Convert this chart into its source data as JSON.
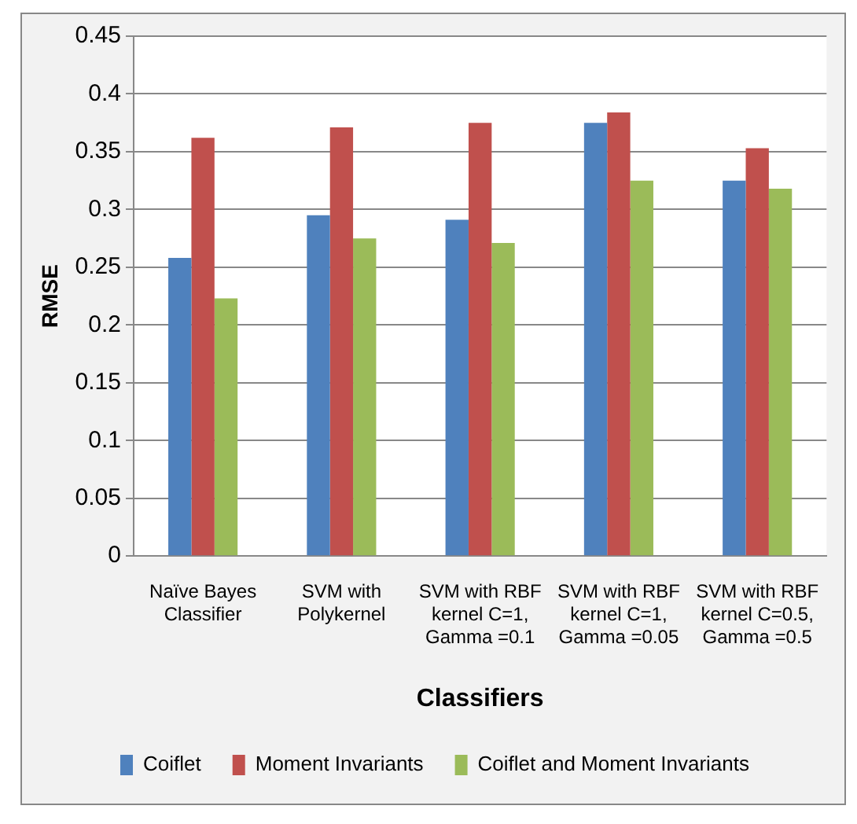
{
  "chart_data": {
    "type": "bar",
    "xlabel": "Classifiers",
    "ylabel": "RMSE",
    "categories": [
      "Naïve Bayes Classifier",
      "SVM with Polykernel",
      "SVM with RBF kernel C=1, Gamma =0.1",
      "SVM with RBF kernel C=1, Gamma =0.05",
      "SVM with RBF kernel C=0.5, Gamma =0.5"
    ],
    "series": [
      {
        "name": "Coiflet",
        "color": "#4f81bd",
        "values": [
          0.258,
          0.295,
          0.291,
          0.375,
          0.325
        ]
      },
      {
        "name": "Moment Invariants",
        "color": "#c0504d",
        "values": [
          0.362,
          0.371,
          0.375,
          0.384,
          0.353
        ]
      },
      {
        "name": "Coiflet and Moment Invariants",
        "color": "#9bbb59",
        "values": [
          0.223,
          0.275,
          0.271,
          0.325,
          0.318
        ]
      }
    ],
    "ylim": [
      0,
      0.45
    ],
    "yticks": [
      0,
      0.05,
      0.1,
      0.15,
      0.2,
      0.25,
      0.3,
      0.35,
      0.4,
      0.45
    ],
    "grid": "y",
    "legend": "bottom"
  }
}
